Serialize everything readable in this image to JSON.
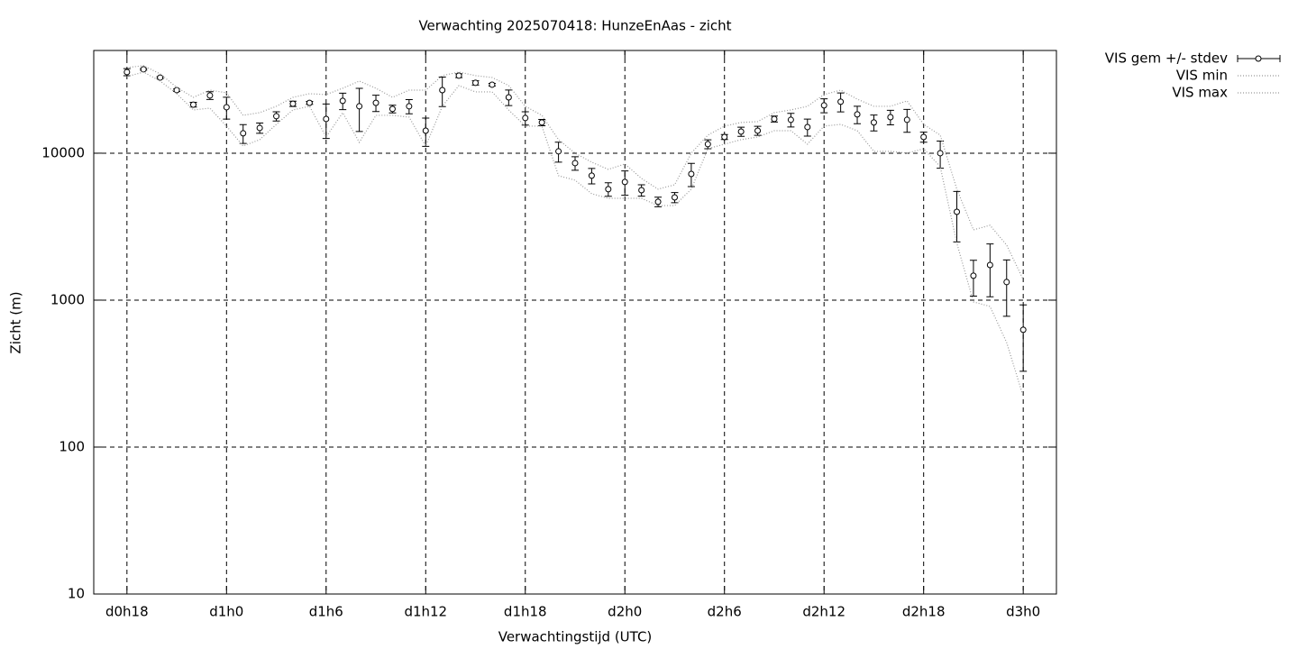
{
  "chart_data": {
    "type": "line",
    "title": "Verwachting 2025070418: HunzeEnAas - zicht",
    "x_label": "Verwachtingstijd (UTC)",
    "y_label": "Zicht (m)",
    "log_y": true,
    "grid": true,
    "legend": "outside-right",
    "xlim": [
      16,
      74
    ],
    "ylim": [
      10,
      50000
    ],
    "xticks": [
      {
        "value": 18,
        "label": "d0h18"
      },
      {
        "value": 24,
        "label": "d1h0"
      },
      {
        "value": 30,
        "label": "d1h6"
      },
      {
        "value": 36,
        "label": "d1h12"
      },
      {
        "value": 42,
        "label": "d1h18"
      },
      {
        "value": 48,
        "label": "d2h0"
      },
      {
        "value": 54,
        "label": "d2h6"
      },
      {
        "value": 60,
        "label": "d2h12"
      },
      {
        "value": 66,
        "label": "d2h18"
      },
      {
        "value": 72,
        "label": "d3h0"
      }
    ],
    "yticks": [
      10,
      100,
      1000,
      10000
    ],
    "x": [
      18,
      19,
      20,
      21,
      22,
      23,
      24,
      25,
      26,
      27,
      28,
      29,
      30,
      31,
      32,
      33,
      34,
      35,
      36,
      37,
      38,
      39,
      40,
      41,
      42,
      43,
      44,
      45,
      46,
      47,
      48,
      49,
      50,
      51,
      52,
      53,
      54,
      55,
      56,
      57,
      58,
      59,
      60,
      61,
      62,
      63,
      64,
      65,
      66,
      67,
      68,
      69,
      70,
      71,
      72
    ],
    "series": [
      {
        "name": "VIS gem +/- stdev",
        "color": "#000000",
        "values": [
          35650,
          37200,
          32700,
          26850,
          21400,
          24700,
          20550,
          13650,
          14850,
          17850,
          21700,
          22000,
          17100,
          22700,
          20850,
          22000,
          20000,
          20850,
          14230,
          26850,
          33700,
          30100,
          29250,
          24000,
          17350,
          16180,
          10290,
          8560,
          7030,
          5690,
          6370,
          5600,
          4670,
          5000,
          7220,
          11520,
          12890,
          14030,
          14230,
          17100,
          16870,
          15060,
          21150,
          22400,
          18380,
          16180,
          17580,
          16870,
          12890,
          10000,
          3990,
          1466,
          1734,
          1327,
          628
        ],
        "errors": [
          2000,
          500,
          500,
          500,
          800,
          1500,
          3500,
          2000,
          1200,
          1300,
          900,
          500,
          4500,
          2900,
          6800,
          2800,
          1200,
          2300,
          3100,
          6100,
          1000,
          1000,
          600,
          2900,
          1800,
          800,
          1600,
          900,
          850,
          600,
          1200,
          500,
          350,
          400,
          1300,
          800,
          500,
          1000,
          1000,
          800,
          1800,
          2000,
          2300,
          3300,
          2500,
          2000,
          2000,
          3000,
          1000,
          2100,
          1500,
          400,
          680,
          550,
          300
        ]
      },
      {
        "name": "VIS min",
        "color": "#999999",
        "values": [
          33220,
          35650,
          30970,
          25400,
          19690,
          20260,
          15280,
          11190,
          12360,
          15710,
          19690,
          20850,
          12890,
          18880,
          11850,
          18100,
          18100,
          17590,
          11190,
          20850,
          28850,
          26130,
          26130,
          19690,
          15280,
          15280,
          7030,
          6550,
          5300,
          4930,
          4930,
          4930,
          4400,
          4400,
          5690,
          10730,
          11520,
          12360,
          12890,
          14230,
          14230,
          11520,
          15280,
          15710,
          14230,
          10290,
          10290,
          10000,
          10730,
          8090,
          2440,
          973,
          906,
          515,
          221
        ]
      },
      {
        "name": "VIS max",
        "color": "#999999",
        "values": [
          38280,
          39400,
          34650,
          28050,
          23990,
          26870,
          25760,
          18100,
          18880,
          20850,
          23990,
          25400,
          25060,
          27660,
          30970,
          27660,
          23990,
          26870,
          26870,
          33720,
          35650,
          33720,
          32750,
          28850,
          20850,
          18100,
          12360,
          10000,
          8690,
          7760,
          8440,
          6730,
          5690,
          6100,
          10000,
          13270,
          15280,
          16180,
          16400,
          18880,
          19690,
          20850,
          25060,
          26870,
          23330,
          20850,
          20850,
          22700,
          15710,
          13270,
          5690,
          3010,
          3230,
          2370,
          1380
        ]
      }
    ]
  }
}
